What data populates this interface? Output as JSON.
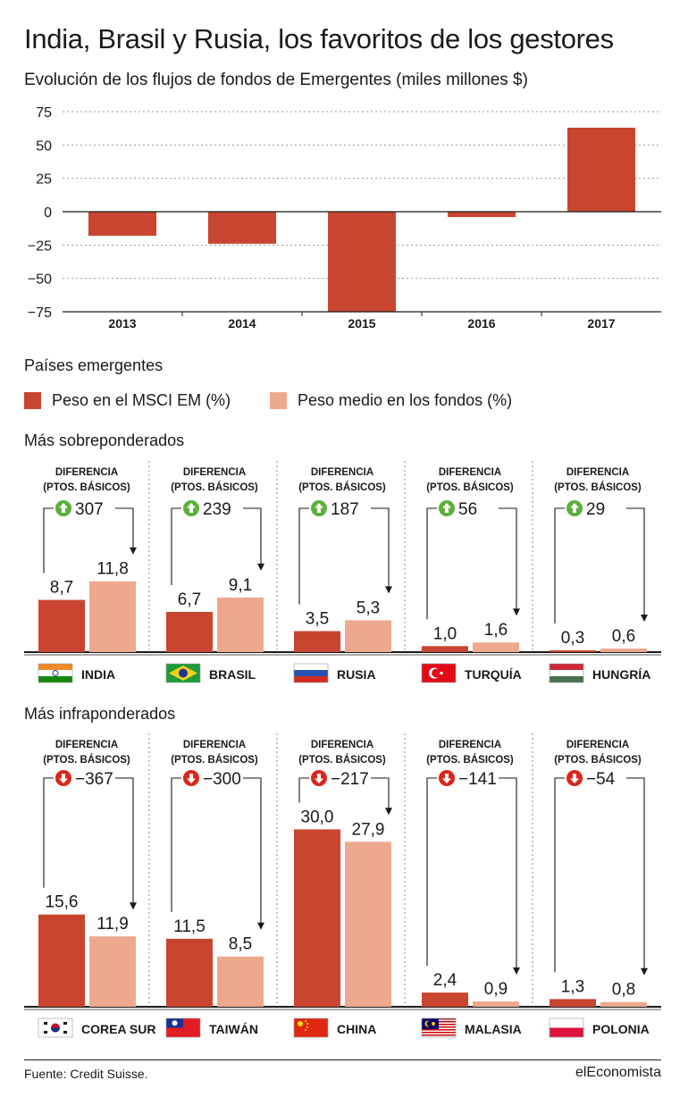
{
  "header": {
    "title": "India, Brasil y Rusia, los favoritos de los gestores",
    "subtitle": "Evolución de los flujos de fondos de Emergentes (miles millones $)"
  },
  "chart_data": [
    {
      "type": "bar",
      "categories": [
        "2013",
        "2014",
        "2015",
        "2016",
        "2017"
      ],
      "values": [
        -18,
        -24,
        -75,
        -4,
        63
      ],
      "ylim": [
        -75,
        75
      ],
      "yticks": [
        "75",
        "50",
        "25",
        "0",
        "−25",
        "−50",
        "−75"
      ],
      "ytick_values": [
        75,
        50,
        25,
        0,
        -25,
        -50,
        -75
      ],
      "grid": true,
      "color": "#c9452f"
    },
    {
      "type": "bar",
      "title": "Más sobreponderados",
      "series": [
        {
          "name": "Peso en el MSCI EM (%)",
          "values": [
            8.7,
            6.7,
            3.5,
            1.0,
            0.3
          ]
        },
        {
          "name": "Peso medio en los fondos (%)",
          "values": [
            11.8,
            9.1,
            5.3,
            1.6,
            0.6
          ]
        }
      ],
      "categories": [
        "INDIA",
        "BRASIL",
        "RUSIA",
        "TURQUÍA",
        "HUNGRÍA"
      ],
      "labels_a": [
        "8,7",
        "6,7",
        "3,5",
        "1,0",
        "0,3"
      ],
      "labels_b": [
        "11,8",
        "9,1",
        "5,3",
        "1,6",
        "0,6"
      ],
      "diff": [
        "307",
        "239",
        "187",
        "56",
        "29"
      ],
      "direction": "up",
      "flags": [
        "india-flag",
        "brazil-flag",
        "russia-flag",
        "turkey-flag",
        "hungary-flag"
      ]
    },
    {
      "type": "bar",
      "title": "Más infraponderados",
      "series": [
        {
          "name": "Peso en el MSCI EM (%)",
          "values": [
            15.6,
            11.5,
            30.0,
            2.4,
            1.3
          ]
        },
        {
          "name": "Peso medio en los fondos (%)",
          "values": [
            11.9,
            8.5,
            27.9,
            0.9,
            0.8
          ]
        }
      ],
      "categories": [
        "COREA SUR",
        "TAIWÁN",
        "CHINA",
        "MALASIA",
        "POLONIA"
      ],
      "labels_a": [
        "15,6",
        "11,5",
        "30,0",
        "2,4",
        "1,3"
      ],
      "labels_b": [
        "11,9",
        "8,5",
        "27,9",
        "0,9",
        "0,8"
      ],
      "diff": [
        "−367",
        "−300",
        "−217",
        "−141",
        "−54"
      ],
      "direction": "down",
      "flags": [
        "south-korea-flag",
        "taiwan-flag",
        "china-flag",
        "malaysia-flag",
        "poland-flag"
      ]
    }
  ],
  "legend": {
    "title": "Países emergentes",
    "msci_label": "Peso en el MSCI EM (%)",
    "funds_label": "Peso medio en los fondos (%)"
  },
  "panels": {
    "over_title": "Más sobreponderados",
    "under_title": "Más infraponderados",
    "diff_line1": "DIFERENCIA",
    "diff_line2": "(PTOS. BÁSICOS)"
  },
  "footer": {
    "source": "Fuente: Credit Suisse.",
    "brand": "elEconomista"
  },
  "colors": {
    "dark": "#c9452f",
    "light": "#eda98d",
    "up_icon": "#5fae3b",
    "down_icon": "#d9261c",
    "text": "#1a1a1a"
  }
}
